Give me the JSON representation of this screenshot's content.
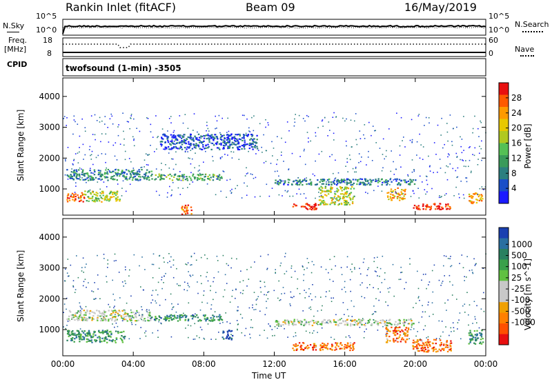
{
  "header": {
    "station": "Rankin Inlet (fitACF)",
    "beam": "Beam 09",
    "date": "16/May/2019"
  },
  "top_panel": {
    "left_label": "N.Sky",
    "right_label": "N.Search",
    "left_ticks": [
      "10^5",
      "10^0"
    ],
    "right_ticks": [
      "10^5",
      "10^0"
    ]
  },
  "freq_panel": {
    "left_label_1": "Freq.",
    "left_label_2": "[MHz]",
    "right_label": "Nave",
    "left_ticks": [
      "18",
      "8"
    ],
    "right_ticks": [
      "60",
      "0"
    ]
  },
  "cpid_panel": {
    "label": "CPID",
    "text": "twofsound (1-min) -3505"
  },
  "chart_data": [
    {
      "type": "heatmap",
      "name": "Power",
      "ylabel": "Slant Range [km]",
      "yticks": [
        1000,
        2000,
        3000,
        4000
      ],
      "xticks": [
        "00:00",
        "04:00",
        "08:00",
        "12:00",
        "16:00",
        "20:00",
        "00:00"
      ],
      "colorbar": {
        "label": "Power [dB]",
        "ticks": [
          "4",
          "8",
          "12",
          "16",
          "20",
          "24",
          "28"
        ],
        "colors": [
          "#1a1aff",
          "#1a4fc8",
          "#2c7f7f",
          "#3a9a5a",
          "#55c055",
          "#b0c820",
          "#e8c800",
          "#ff9a00",
          "#ff5a00",
          "#e81010"
        ]
      },
      "features": [
        {
          "t": [
            0.2,
            1.2
          ],
          "r": [
            600,
            900
          ],
          "level": 0.85
        },
        {
          "t": [
            1.2,
            3.2
          ],
          "r": [
            600,
            950
          ],
          "level": 0.55
        },
        {
          "t": [
            0.2,
            5.0
          ],
          "r": [
            1300,
            1650
          ],
          "level": 0.3
        },
        {
          "t": [
            5.0,
            9.0
          ],
          "r": [
            1300,
            1500
          ],
          "level": 0.4
        },
        {
          "t": [
            6.7,
            7.3
          ],
          "r": [
            200,
            500
          ],
          "level": 0.85
        },
        {
          "t": [
            13.0,
            14.5
          ],
          "r": [
            350,
            550
          ],
          "level": 0.95
        },
        {
          "t": [
            14.5,
            16.5
          ],
          "r": [
            500,
            1100
          ],
          "level": 0.55
        },
        {
          "t": [
            18.3,
            19.4
          ],
          "r": [
            650,
            1050
          ],
          "level": 0.7
        },
        {
          "t": [
            19.8,
            22.0
          ],
          "r": [
            350,
            550
          ],
          "level": 0.95
        },
        {
          "t": [
            12.0,
            20.0
          ],
          "r": [
            1150,
            1350
          ],
          "level": 0.25
        },
        {
          "t": [
            5.5,
            11.0
          ],
          "r": [
            2300,
            2800
          ],
          "level": 0.15
        },
        {
          "t": [
            23.0,
            23.8
          ],
          "r": [
            550,
            900
          ],
          "level": 0.75
        }
      ]
    },
    {
      "type": "heatmap",
      "name": "Velocity",
      "ylabel": "Slant Range [km]",
      "yticks": [
        1000,
        2000,
        3000,
        4000
      ],
      "xticks": [
        "00:00",
        "04:00",
        "08:00",
        "12:00",
        "16:00",
        "20:00",
        "00:00"
      ],
      "xlabel": "Time UT",
      "colorbar": {
        "label": "Velocity [m s^-1]",
        "ticks": [
          "1000",
          "500",
          "100",
          "25",
          "-25",
          "-100",
          "-500",
          "-1000"
        ],
        "colors": [
          "#1a3fb0",
          "#2a6fa0",
          "#2a8060",
          "#3aa04a",
          "#60c040",
          "#c8c8c8",
          "#c8c8c8",
          "#f0a000",
          "#ff8000",
          "#ff5000",
          "#e81010"
        ]
      },
      "features": [
        {
          "t": [
            0.2,
            3.5
          ],
          "r": [
            600,
            1000
          ],
          "level": 0.3
        },
        {
          "t": [
            0.2,
            5.0
          ],
          "r": [
            1300,
            1650
          ],
          "level": 0.5
        },
        {
          "t": [
            5.0,
            9.0
          ],
          "r": [
            1300,
            1500
          ],
          "level": 0.25
        },
        {
          "t": [
            9.0,
            9.6
          ],
          "r": [
            700,
            1000
          ],
          "level": 0.05
        },
        {
          "t": [
            13.0,
            16.5
          ],
          "r": [
            350,
            600
          ],
          "level": 0.8
        },
        {
          "t": [
            18.3,
            19.6
          ],
          "r": [
            600,
            1100
          ],
          "level": 0.8
        },
        {
          "t": [
            19.8,
            22.0
          ],
          "r": [
            300,
            700
          ],
          "level": 0.8
        },
        {
          "t": [
            12.0,
            20.0
          ],
          "r": [
            1150,
            1350
          ],
          "level": 0.5
        },
        {
          "t": [
            23.0,
            23.8
          ],
          "r": [
            550,
            1000
          ],
          "level": 0.25
        }
      ]
    }
  ],
  "colors": {
    "axis": "#000000",
    "background": "#ffffff"
  }
}
